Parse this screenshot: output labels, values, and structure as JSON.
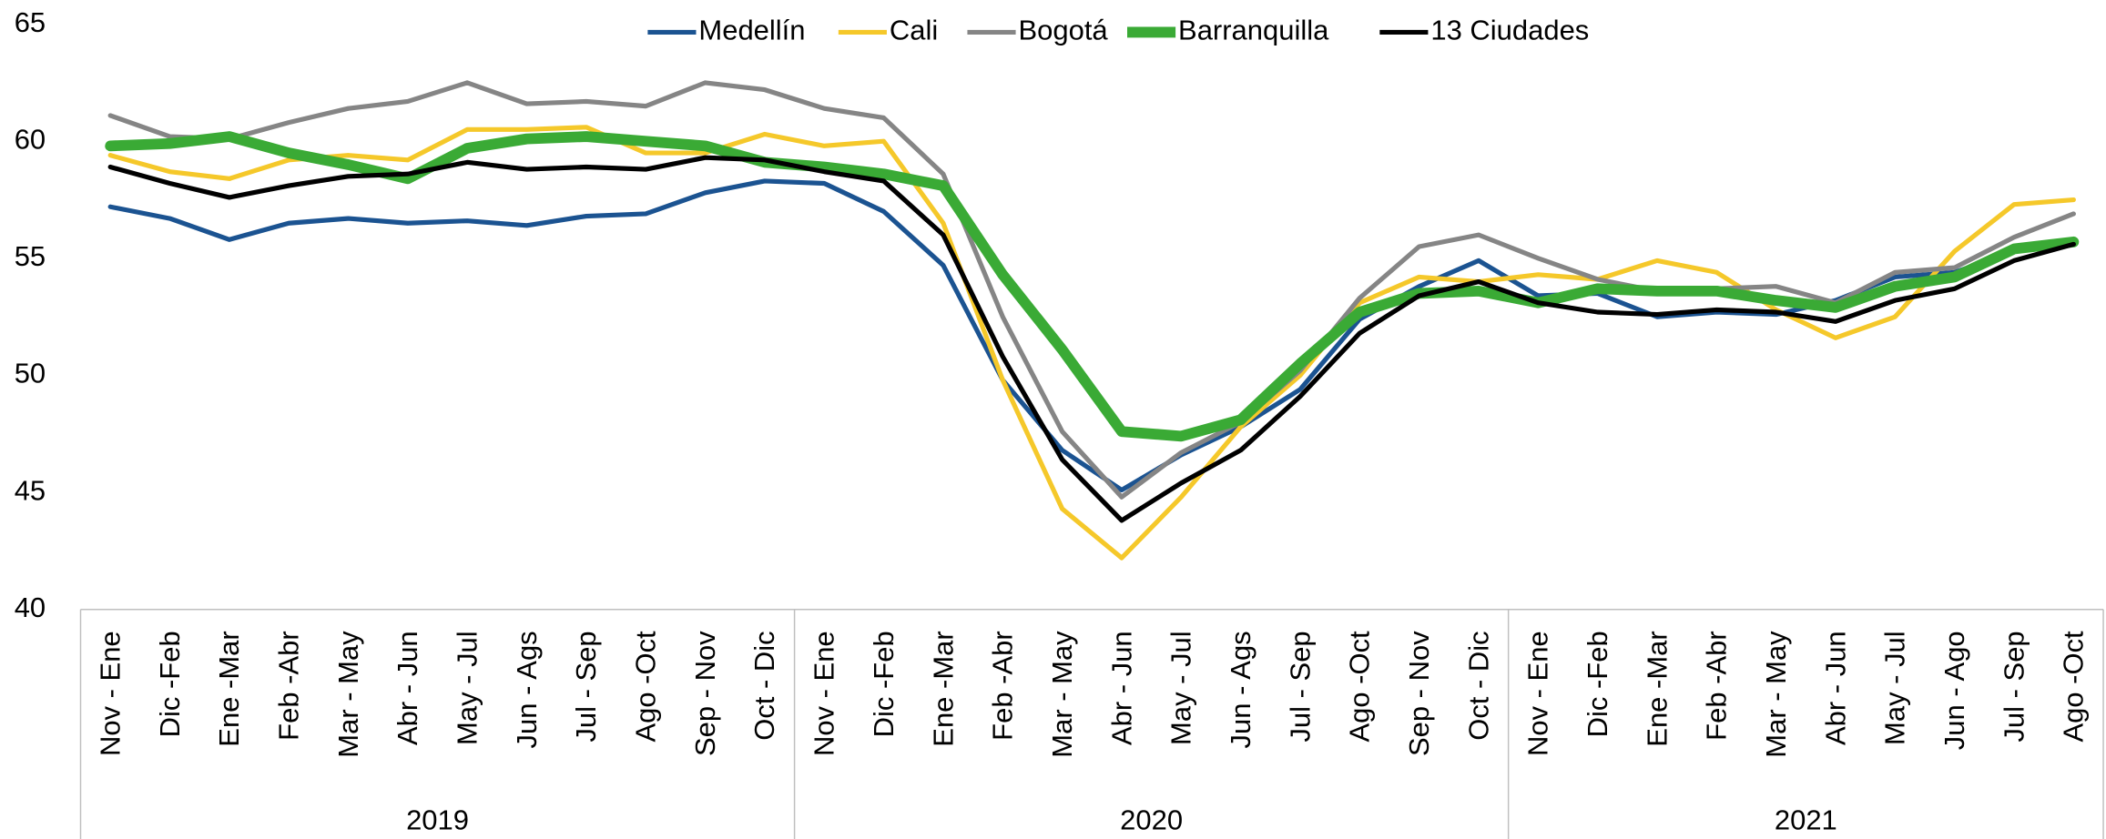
{
  "chart_data": {
    "type": "line",
    "categories": [
      "Nov - Ene",
      "Dic -Feb",
      "Ene -Mar",
      "Feb -Abr",
      "Mar - May",
      "Abr - Jun",
      "May - Jul",
      "Jun - Ags",
      "Jul - Sep",
      "Ago -Oct",
      "Sep - Nov",
      "Oct - Dic",
      "Nov - Ene",
      "Dic -Feb",
      "Ene -Mar",
      "Feb -Abr",
      "Mar - May",
      "Abr - Jun",
      "May - Jul",
      "Jun - Ags",
      "Jul - Sep",
      "Ago -Oct",
      "Sep - Nov",
      "Oct - Dic",
      "Nov - Ene",
      "Dic -Feb",
      "Ene -Mar",
      "Feb -Abr",
      "Mar - May",
      "Abr - Jun",
      "May - Jul",
      "Jun - Ago",
      "Jul - Sep",
      "Ago -Oct"
    ],
    "year_groups": [
      {
        "label": "2019",
        "size": 12
      },
      {
        "label": "2020",
        "size": 12
      },
      {
        "label": "2021",
        "size": 10
      }
    ],
    "series": [
      {
        "name": "Medellín",
        "color": "#1b5391",
        "width": 3.5,
        "values": [
          57.2,
          56.7,
          55.8,
          56.5,
          56.7,
          56.5,
          56.6,
          56.4,
          56.8,
          56.9,
          57.8,
          58.3,
          58.2,
          57.0,
          54.7,
          49.8,
          46.8,
          45.1,
          46.6,
          47.8,
          49.4,
          52.4,
          53.8,
          54.9,
          53.4,
          53.5,
          52.5,
          52.7,
          52.6,
          53.2,
          54.2,
          54.4,
          55.3,
          55.6
        ]
      },
      {
        "name": "Cali",
        "color": "#f5c82a",
        "width": 3.5,
        "values": [
          59.4,
          58.7,
          58.4,
          59.2,
          59.4,
          59.2,
          60.5,
          60.5,
          60.6,
          59.5,
          59.5,
          60.3,
          59.8,
          60.0,
          56.5,
          49.8,
          44.3,
          42.2,
          44.8,
          47.8,
          50.0,
          53.1,
          54.2,
          54.0,
          54.3,
          54.1,
          54.9,
          54.4,
          52.8,
          51.6,
          52.5,
          55.3,
          57.3,
          57.5
        ]
      },
      {
        "name": "Bogotá",
        "color": "#858585",
        "width": 3.5,
        "values": [
          61.1,
          60.2,
          60.1,
          60.8,
          61.4,
          61.7,
          62.5,
          61.6,
          61.7,
          61.5,
          62.5,
          62.2,
          61.4,
          61.0,
          58.6,
          52.5,
          47.6,
          44.8,
          46.7,
          48.0,
          50.2,
          53.3,
          55.5,
          56.0,
          55.0,
          54.1,
          53.6,
          53.7,
          53.8,
          53.1,
          54.4,
          54.6,
          55.9,
          56.9
        ]
      },
      {
        "name": "Barranquilla",
        "color": "#3aaa35",
        "width": 8,
        "values": [
          59.8,
          59.9,
          60.2,
          59.5,
          59.0,
          58.4,
          59.7,
          60.1,
          60.2,
          60.0,
          59.8,
          59.1,
          58.9,
          58.6,
          58.1,
          54.3,
          51.1,
          47.6,
          47.4,
          48.1,
          50.5,
          52.7,
          53.5,
          53.6,
          53.1,
          53.7,
          53.6,
          53.6,
          53.2,
          52.9,
          53.8,
          54.2,
          55.4,
          55.7
        ]
      },
      {
        "name": "13 Ciudades",
        "color": "#000000",
        "width": 3.5,
        "values": [
          58.9,
          58.2,
          57.6,
          58.1,
          58.5,
          58.6,
          59.1,
          58.8,
          58.9,
          58.8,
          59.3,
          59.2,
          58.7,
          58.3,
          56.0,
          50.8,
          46.4,
          43.8,
          45.4,
          46.8,
          49.1,
          51.8,
          53.4,
          54.0,
          53.1,
          52.7,
          52.6,
          52.8,
          52.7,
          52.3,
          53.2,
          53.7,
          54.9,
          55.6
        ]
      }
    ],
    "ylim": [
      40,
      65
    ],
    "yticks": [
      40,
      45,
      50,
      55,
      60,
      65
    ],
    "grid": false,
    "legend": "top"
  }
}
